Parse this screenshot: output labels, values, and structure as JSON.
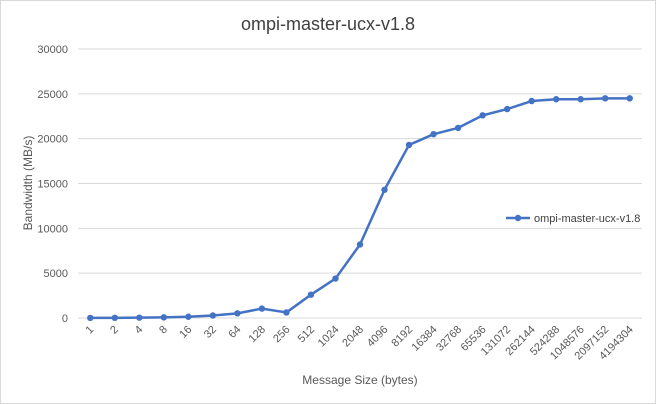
{
  "chart_data": {
    "type": "line",
    "title": "ompi-master-ucx-v1.8",
    "xlabel": "Message Size (bytes)",
    "ylabel": "Bandwidth (MB/s)",
    "ylim": [
      0,
      30000
    ],
    "yticks": [
      0,
      5000,
      10000,
      15000,
      20000,
      25000,
      30000
    ],
    "grid": "horizontal",
    "legend_position": "right",
    "categories": [
      "1",
      "2",
      "4",
      "8",
      "16",
      "32",
      "64",
      "128",
      "256",
      "512",
      "1024",
      "2048",
      "4096",
      "8192",
      "16384",
      "32768",
      "65536",
      "131072",
      "262144",
      "524288",
      "1048576",
      "2097152",
      "4194304"
    ],
    "series": [
      {
        "name": "ompi-master-ucx-v1.8",
        "color": "#4472c4",
        "values": [
          10,
          20,
          40,
          70,
          140,
          280,
          520,
          1050,
          620,
          2600,
          4400,
          8200,
          14300,
          19300,
          20500,
          21200,
          22600,
          23300,
          24200,
          24400,
          24400,
          24500,
          24500
        ]
      }
    ]
  }
}
